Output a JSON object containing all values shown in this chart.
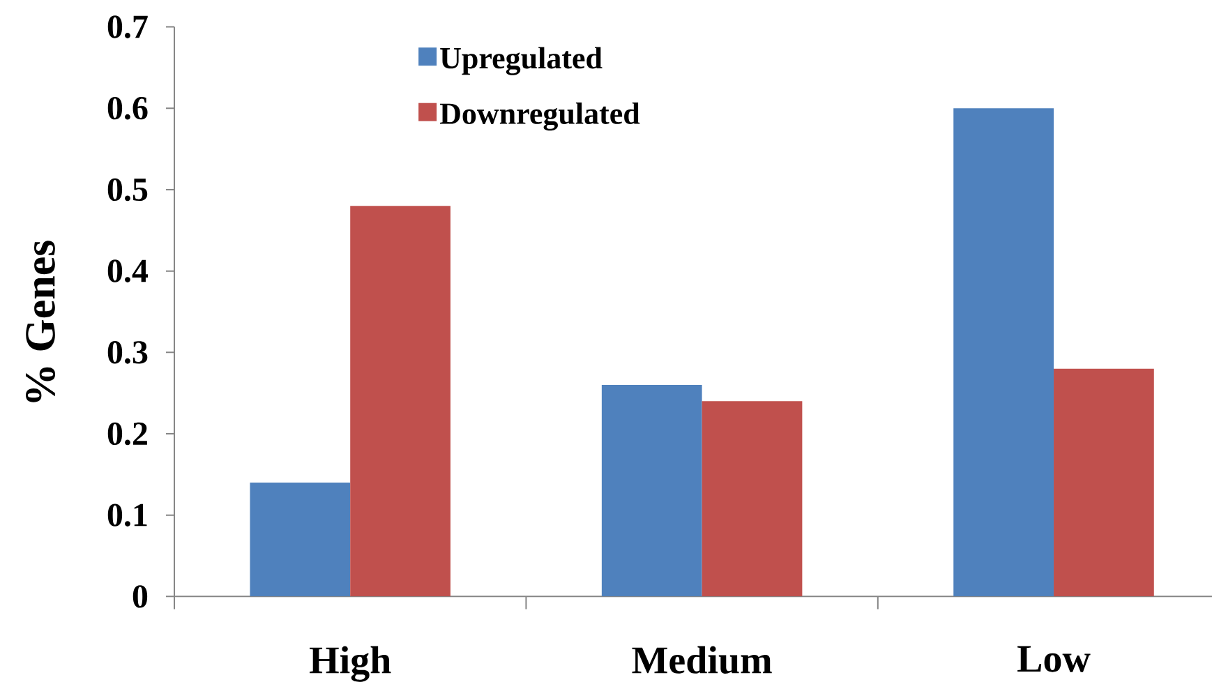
{
  "chart_data": {
    "type": "bar",
    "ylabel": "% Genes",
    "categories": [
      "High",
      "Medium",
      "Low"
    ],
    "series": [
      {
        "name": "Upregulated",
        "color": "#4f81bd",
        "values": [
          0.14,
          0.26,
          0.6
        ]
      },
      {
        "name": "Downregulated",
        "color": "#c0504d",
        "values": [
          0.48,
          0.24,
          0.28
        ]
      }
    ],
    "ylim": [
      0,
      0.7
    ],
    "yticks": [
      0,
      0.1,
      0.2,
      0.3,
      0.4,
      0.5,
      0.6,
      0.7
    ],
    "legend": "top"
  }
}
